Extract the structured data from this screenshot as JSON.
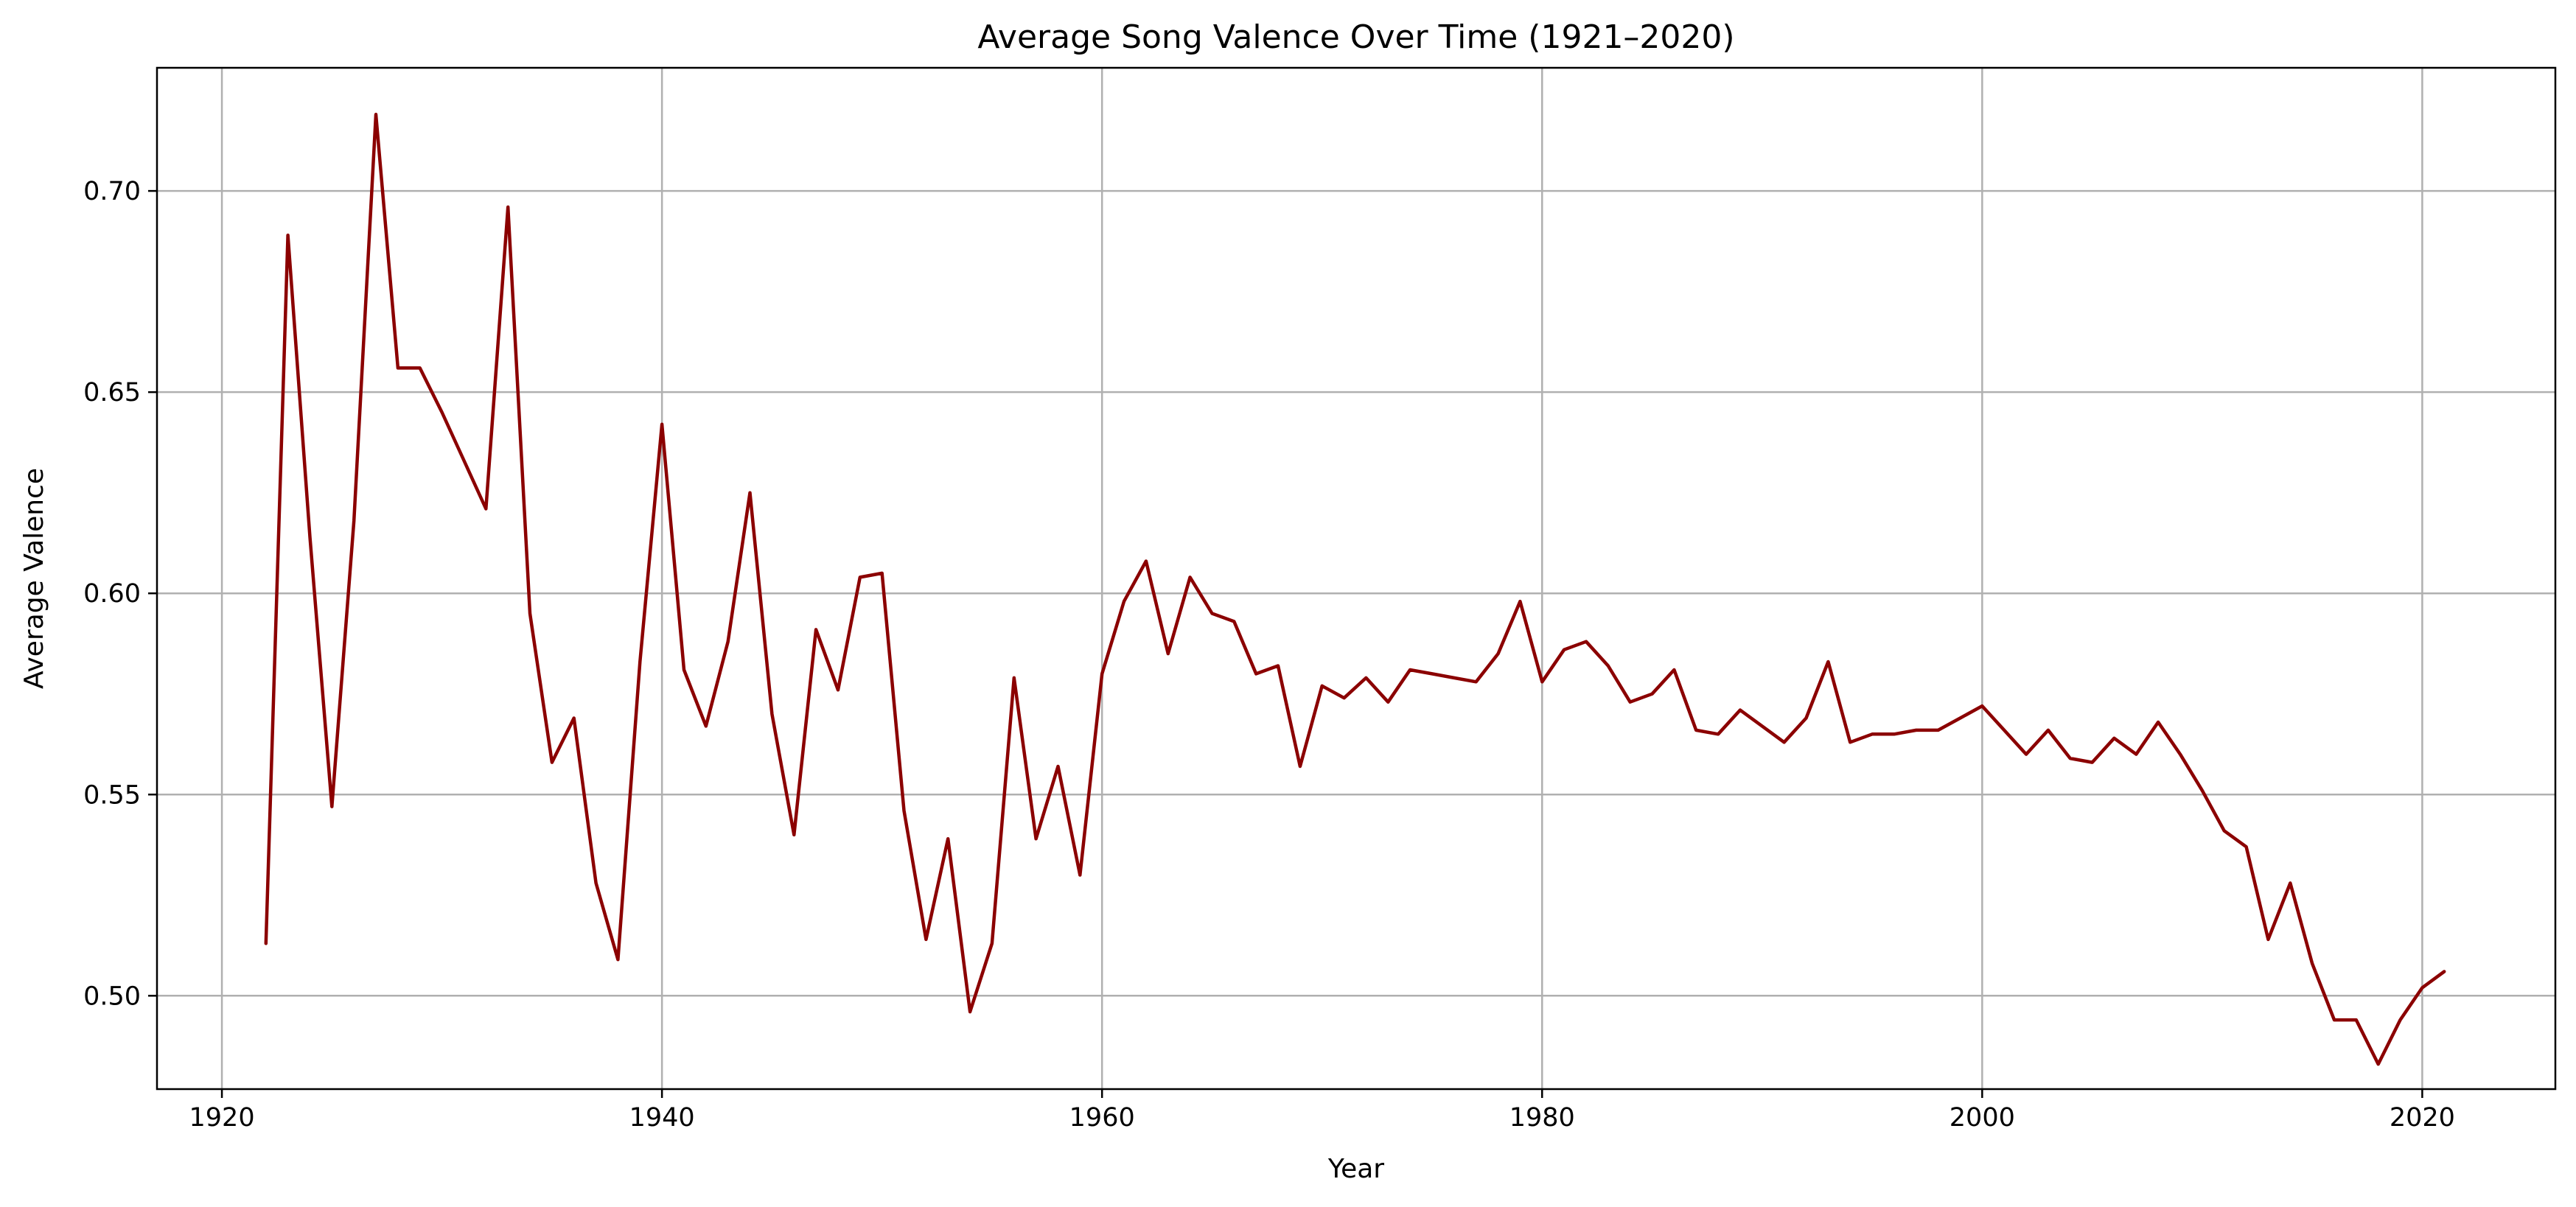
{
  "chart_data": {
    "type": "line",
    "title": "Average Song Valence Over Time (1921–2020)",
    "xlabel": "Year",
    "ylabel": "Average Valence",
    "xlim": [
      1917.05,
      2026.05
    ],
    "ylim": [
      0.4768,
      0.7306
    ],
    "xticks": [
      1920,
      1940,
      1960,
      1980,
      2000,
      2020
    ],
    "yticks": [
      0.5,
      0.55,
      0.6,
      0.65,
      0.7
    ],
    "grid": true,
    "legend": null,
    "series": [
      {
        "color": "#8b0000",
        "x": [
          1922,
          1923,
          1924,
          1925,
          1926,
          1927,
          1928,
          1929,
          1930,
          1931,
          1932,
          1933,
          1934,
          1935,
          1936,
          1937,
          1938,
          1939,
          1940,
          1941,
          1942,
          1943,
          1944,
          1945,
          1946,
          1947,
          1948,
          1949,
          1950,
          1951,
          1952,
          1953,
          1954,
          1955,
          1956,
          1957,
          1958,
          1959,
          1960,
          1961,
          1962,
          1963,
          1964,
          1965,
          1966,
          1967,
          1968,
          1969,
          1970,
          1971,
          1972,
          1973,
          1974,
          1975,
          1976,
          1977,
          1978,
          1979,
          1980,
          1981,
          1982,
          1983,
          1984,
          1985,
          1986,
          1987,
          1988,
          1989,
          1990,
          1991,
          1992,
          1993,
          1994,
          1995,
          1996,
          1997,
          1998,
          1999,
          2000,
          2001,
          2002,
          2003,
          2004,
          2005,
          2006,
          2007,
          2008,
          2009,
          2010,
          2011,
          2012,
          2013,
          2014,
          2015,
          2016,
          2017,
          2018,
          2019,
          2020,
          2021
        ],
        "y": [
          0.513,
          0.689,
          0.614,
          0.547,
          0.618,
          0.719,
          0.656,
          0.656,
          0.645,
          0.633,
          0.621,
          0.696,
          0.595,
          0.558,
          0.569,
          0.528,
          0.509,
          0.583,
          0.642,
          0.581,
          0.567,
          0.588,
          0.625,
          0.57,
          0.54,
          0.591,
          0.576,
          0.604,
          0.605,
          0.546,
          0.514,
          0.539,
          0.496,
          0.513,
          0.579,
          0.539,
          0.557,
          0.53,
          0.58,
          0.598,
          0.608,
          0.585,
          0.604,
          0.595,
          0.593,
          0.58,
          0.582,
          0.557,
          0.577,
          0.574,
          0.579,
          0.573,
          0.581,
          0.58,
          0.579,
          0.578,
          0.585,
          0.598,
          0.578,
          0.586,
          0.588,
          0.582,
          0.573,
          0.575,
          0.581,
          0.566,
          0.565,
          0.571,
          0.567,
          0.563,
          0.569,
          0.583,
          0.563,
          0.565,
          0.565,
          0.566,
          0.566,
          0.569,
          0.572,
          0.566,
          0.56,
          0.566,
          0.559,
          0.558,
          0.564,
          0.56,
          0.568,
          0.56,
          0.551,
          0.541,
          0.537,
          0.514,
          0.528,
          0.508,
          0.494,
          0.494,
          0.483,
          0.494,
          0.502,
          0.506
        ]
      }
    ]
  }
}
